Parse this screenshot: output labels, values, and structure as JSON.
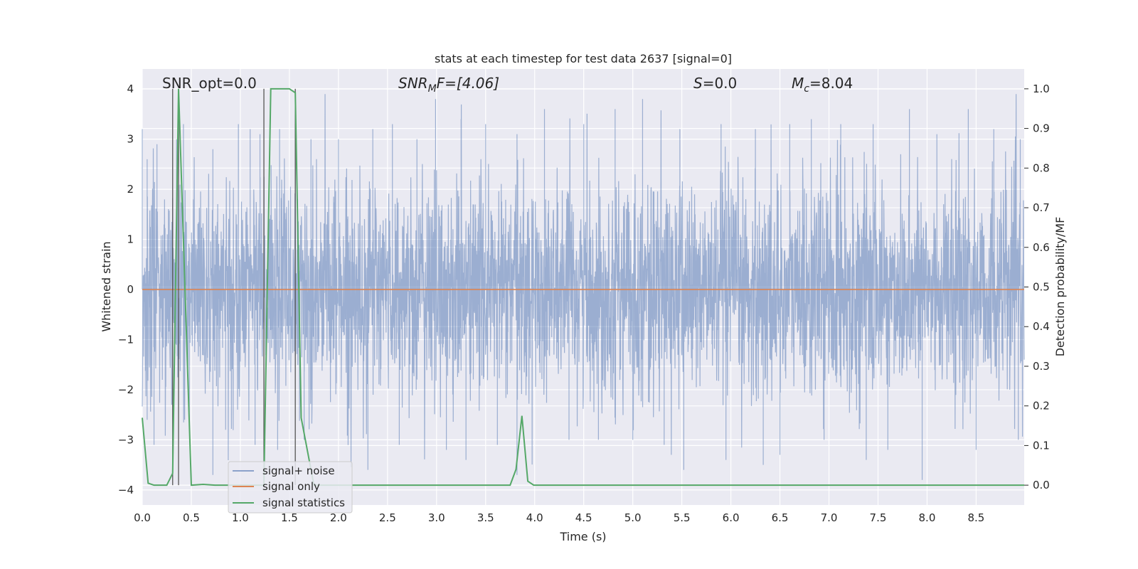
{
  "chart_data": {
    "type": "line",
    "title": "stats at each timestep for test data 2637 [signal=0]",
    "xlabel": "Time (s)",
    "ylabel": "Whitened strain",
    "y2label": "Detection probability/MF",
    "xlim": [
      0,
      8.99
    ],
    "ylim": [
      -4.3,
      4.4
    ],
    "y2lim": [
      -0.05,
      1.05
    ],
    "grid": true,
    "legend_position": "lower-left",
    "x_ticks": [
      0.0,
      0.5,
      1.0,
      1.5,
      2.0,
      2.5,
      3.0,
      3.5,
      4.0,
      4.5,
      5.0,
      5.5,
      6.0,
      6.5,
      7.0,
      7.5,
      8.0,
      8.5
    ],
    "x_tick_labels": [
      "0.0",
      "0.5",
      "1.0",
      "1.5",
      "2.0",
      "2.5",
      "3.0",
      "3.5",
      "4.0",
      "4.5",
      "5.0",
      "5.5",
      "6.0",
      "6.5",
      "7.0",
      "7.5",
      "8.0",
      "8.5"
    ],
    "y_ticks": [
      -4,
      -3,
      -2,
      -1,
      0,
      1,
      2,
      3,
      4
    ],
    "y_tick_labels": [
      "−4",
      "−3",
      "−2",
      "−1",
      "0",
      "1",
      "2",
      "3",
      "4"
    ],
    "y2_ticks": [
      0.0,
      0.1,
      0.2,
      0.3,
      0.4,
      0.5,
      0.6,
      0.7,
      0.8,
      0.9,
      1.0
    ],
    "y2_tick_labels": [
      "0.0",
      "0.1",
      "0.2",
      "0.3",
      "0.4",
      "0.5",
      "0.6",
      "0.7",
      "0.8",
      "0.9",
      "1.0"
    ],
    "annotations": {
      "snr_opt": "SNR_opt=0.0",
      "snr_mf_main": "SNR",
      "snr_mf_sub": "M",
      "snr_mf_rest": "F=[4.06]",
      "s_var": "S",
      "s_rest": "=0.0",
      "mc_main": "M",
      "mc_sub": "c",
      "mc_rest": "=8.04"
    },
    "vertical_lines_x": [
      0.31,
      0.37,
      1.24,
      1.56
    ],
    "series": [
      {
        "name": "signal+ noise",
        "color": "#4c72b0",
        "opacity": 0.5,
        "description_axis": "left",
        "sample_rate_hz": 2048,
        "envelope_peaks_x": [
          0.0,
          0.05,
          0.15,
          0.35,
          0.42,
          0.72,
          0.98,
          1.1,
          1.2,
          1.4,
          1.56,
          1.72,
          2.0,
          2.35,
          2.55,
          2.8,
          2.99,
          3.25,
          3.5,
          3.82,
          4.1,
          4.5,
          4.82,
          5.1,
          5.48,
          5.9,
          6.25,
          6.6,
          6.82,
          7.12,
          7.45,
          7.82,
          8.1,
          8.42,
          8.68,
          8.95
        ],
        "envelope_peaks_y": [
          3.2,
          2.6,
          2.9,
          3.0,
          3.3,
          2.8,
          3.3,
          3.2,
          3.1,
          3.2,
          3.3,
          3.0,
          3.0,
          3.2,
          3.3,
          3.0,
          3.8,
          3.4,
          3.3,
          3.1,
          3.6,
          3.3,
          3.6,
          3.8,
          3.2,
          3.3,
          3.2,
          3.3,
          3.4,
          3.3,
          3.3,
          3.6,
          3.1,
          3.6,
          3.2,
          3.0
        ],
        "envelope_troughs_x": [
          0.05,
          0.12,
          0.3,
          0.48,
          0.72,
          0.85,
          1.15,
          1.38,
          1.65,
          2.3,
          2.62,
          3.1,
          3.3,
          3.62,
          3.82,
          4.35,
          4.65,
          5.0,
          5.32,
          5.52,
          5.95,
          6.33,
          6.5,
          6.95,
          7.38,
          7.6,
          7.95,
          8.5,
          8.93
        ],
        "envelope_troughs_y": [
          -2.6,
          -3.1,
          -2.3,
          -2.6,
          -3.7,
          -2.8,
          -3.1,
          -3.2,
          -3.0,
          -3.6,
          -3.1,
          -3.2,
          -3.4,
          -3.1,
          -3.7,
          -3.0,
          -3.0,
          -3.0,
          -3.1,
          -3.6,
          -3.4,
          -3.5,
          -3.3,
          -3.0,
          -3.4,
          -3.2,
          -3.8,
          -3.2,
          -3.0
        ]
      },
      {
        "name": "signal only",
        "color": "#dd8452",
        "description_axis": "left",
        "x": [
          0.0,
          8.99
        ],
        "y": [
          0.0,
          0.0
        ]
      },
      {
        "name": "signal statistics",
        "color": "#55a868",
        "description_axis": "right",
        "x": [
          0.0,
          0.06,
          0.12,
          0.25,
          0.31,
          0.37,
          0.5,
          0.62,
          0.74,
          1.0,
          1.24,
          1.31,
          1.37,
          1.5,
          1.56,
          1.62,
          1.75,
          2.0,
          3.0,
          3.75,
          3.81,
          3.87,
          3.93,
          3.99,
          4.05,
          4.12,
          4.5,
          5.0,
          6.0,
          7.0,
          8.0,
          8.99
        ],
        "y": [
          0.17,
          0.005,
          0.0,
          0.0,
          0.03,
          1.0,
          0.0,
          0.002,
          0.0,
          0.0,
          0.0,
          1.0,
          1.0,
          1.0,
          0.99,
          0.17,
          0.0,
          0.0,
          0.0,
          0.0,
          0.04,
          0.175,
          0.01,
          0.0,
          0.0,
          0.0,
          0.0,
          0.0,
          0.0,
          0.0,
          0.0,
          0.0
        ]
      }
    ]
  }
}
